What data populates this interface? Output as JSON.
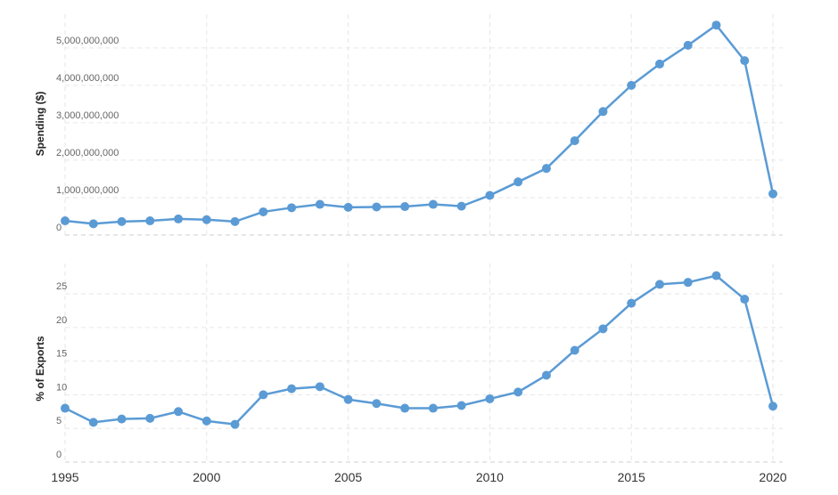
{
  "colors": {
    "series": "#5b9bd5",
    "grid": "#e6e6e6",
    "background": "#ffffff"
  },
  "chart_data": [
    {
      "type": "line",
      "title": "",
      "xlabel": "",
      "ylabel": "Spending ($)",
      "x": [
        1995,
        1996,
        1997,
        1998,
        1999,
        2000,
        2001,
        2002,
        2003,
        2004,
        2005,
        2006,
        2007,
        2008,
        2009,
        2010,
        2011,
        2012,
        2013,
        2014,
        2015,
        2016,
        2017,
        2018,
        2019,
        2020
      ],
      "series": [
        {
          "values": [
            380000000,
            300000000,
            360000000,
            380000000,
            430000000,
            410000000,
            360000000,
            620000000,
            730000000,
            820000000,
            740000000,
            750000000,
            760000000,
            820000000,
            770000000,
            1060000000,
            1420000000,
            1780000000,
            2520000000,
            3300000000,
            4000000000,
            4570000000,
            5070000000,
            5610000000,
            4660000000,
            1100000000
          ]
        }
      ],
      "xlim": [
        1995,
        2020
      ],
      "ylim": [
        0,
        5900000000
      ],
      "y_ticks": [
        0,
        1000000000,
        2000000000,
        3000000000,
        4000000000,
        5000000000
      ],
      "y_tick_labels": [
        "0",
        "1,000,000,000",
        "2,000,000,000",
        "3,000,000,000",
        "4,000,000,000",
        "5,000,000,000"
      ],
      "grid": true,
      "legend": "none"
    },
    {
      "type": "line",
      "title": "",
      "xlabel": "",
      "ylabel": "% of Exports",
      "x": [
        1995,
        1996,
        1997,
        1998,
        1999,
        2000,
        2001,
        2002,
        2003,
        2004,
        2005,
        2006,
        2007,
        2008,
        2009,
        2010,
        2011,
        2012,
        2013,
        2014,
        2015,
        2016,
        2017,
        2018,
        2019,
        2020
      ],
      "series": [
        {
          "values": [
            8.0,
            5.9,
            6.4,
            6.5,
            7.5,
            6.1,
            5.6,
            10.0,
            10.9,
            11.2,
            9.3,
            8.7,
            8.0,
            8.0,
            8.4,
            9.4,
            10.4,
            12.9,
            16.6,
            19.8,
            23.6,
            26.4,
            26.7,
            27.7,
            24.2,
            8.3
          ]
        }
      ],
      "xlim": [
        1995,
        2020
      ],
      "ylim": [
        0,
        29.5
      ],
      "y_ticks": [
        0,
        5,
        10,
        15,
        20,
        25
      ],
      "y_tick_labels": [
        "0",
        "5",
        "10",
        "15",
        "20",
        "25"
      ],
      "x_ticks": [
        1995,
        2000,
        2005,
        2010,
        2015,
        2020
      ],
      "x_tick_labels": [
        "1995",
        "2000",
        "2005",
        "2010",
        "2015",
        "2020"
      ],
      "grid": true,
      "legend": "none"
    }
  ]
}
